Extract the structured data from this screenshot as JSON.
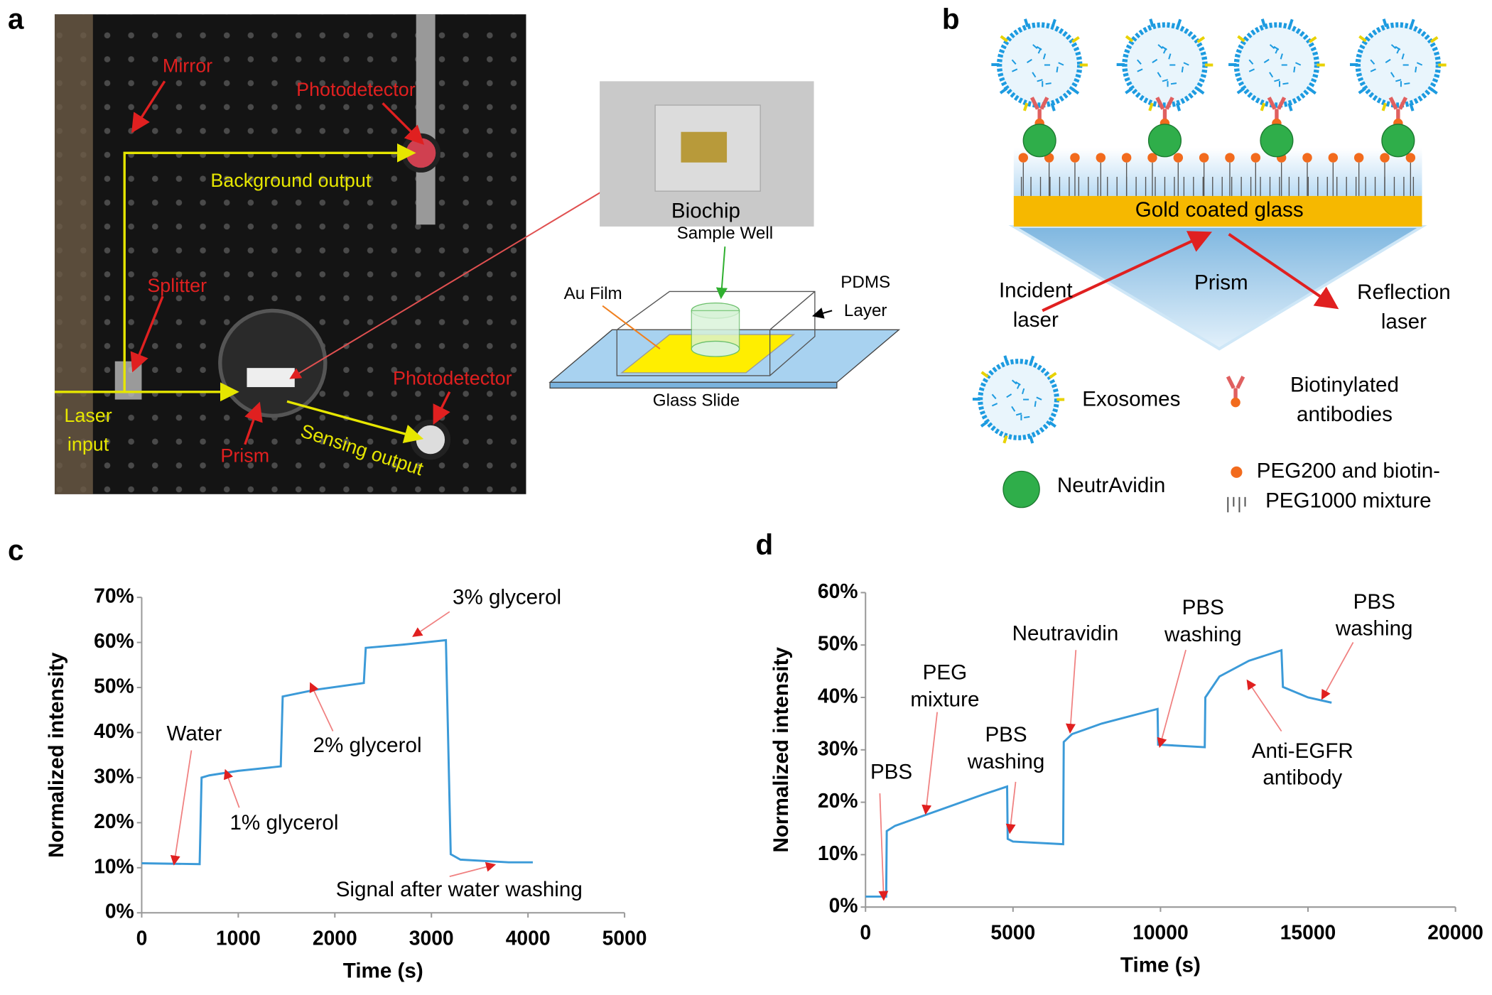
{
  "panel_labels": [
    "a",
    "b",
    "c",
    "d"
  ],
  "setup_photo": {
    "labels": [
      [
        "Mirror"
      ],
      [
        "Photodetector"
      ],
      [
        "Background output"
      ],
      [
        "Splitter"
      ],
      [
        "Laser",
        "input"
      ],
      [
        "Prism"
      ],
      [
        "Sensing output"
      ],
      [
        "Photodetector"
      ]
    ]
  },
  "biochip": {
    "photo_label": "Biochip",
    "labels": [
      [
        "Sample Well"
      ],
      [
        "Au Film"
      ],
      [
        "PDMS",
        "Layer"
      ],
      [
        "Glass Slide"
      ]
    ]
  },
  "schematic": {
    "labels": [
      [
        "Gold coated glass"
      ],
      [
        "Prism"
      ],
      [
        "Incident",
        "laser"
      ],
      [
        "Reflection",
        "laser"
      ]
    ],
    "legend": [
      [
        "Exosomes"
      ],
      [
        "Biotinylated",
        "antibodies"
      ],
      [
        "NeutrAvidin"
      ],
      [
        "PEG200 and biotin-",
        "PEG1000 mixture"
      ]
    ]
  },
  "chart_data": [
    {
      "type": "line",
      "xlabel": "Time (s)",
      "ylabel": "Normalized intensity",
      "color": "#3b9ad8",
      "x": [
        0,
        600,
        620,
        700,
        1000,
        1440,
        1460,
        1800,
        2300,
        2320,
        2700,
        3150,
        3200,
        3300,
        3800,
        4050
      ],
      "values": [
        11,
        10.8,
        30,
        30.5,
        31.5,
        32.5,
        48,
        49.5,
        51,
        58.8,
        59.5,
        60.5,
        13,
        11.8,
        11.2,
        11.2
      ],
      "xlim": [
        0,
        5000
      ],
      "xticks": [
        0,
        1000,
        2000,
        3000,
        4000,
        5000
      ],
      "ylim": [
        0,
        70
      ],
      "yticks": [
        {
          "value": 0,
          "label": "0%"
        },
        {
          "value": 10,
          "label": "10%"
        },
        {
          "value": 20,
          "label": "20%"
        },
        {
          "value": 30,
          "label": "30%"
        },
        {
          "value": 40,
          "label": "40%"
        },
        {
          "value": 50,
          "label": "50%"
        },
        {
          "value": 60,
          "label": "60%"
        },
        {
          "value": 70,
          "label": "70%"
        }
      ],
      "annotations": [
        [
          "Water"
        ],
        [
          "1% glycerol"
        ],
        [
          "2% glycerol"
        ],
        [
          "3% glycerol"
        ],
        [
          "Signal after water washing"
        ]
      ]
    },
    {
      "type": "line",
      "xlabel": "Time (s)",
      "ylabel": "Normalized intensity",
      "color": "#3b9ad8",
      "x": [
        0,
        700,
        720,
        1000,
        2000,
        4000,
        4800,
        4820,
        5000,
        6700,
        6720,
        7000,
        8000,
        9900,
        9920,
        11500,
        11520,
        12000,
        13000,
        14100,
        14150,
        15000,
        15800
      ],
      "values": [
        2,
        2,
        14.5,
        15.5,
        17.5,
        21.5,
        23,
        13,
        12.5,
        12,
        31.5,
        33,
        35,
        37.8,
        31,
        30.5,
        40,
        44,
        47,
        49,
        42,
        40,
        39
      ],
      "xlim": [
        0,
        20000
      ],
      "xticks": [
        0,
        5000,
        10000,
        15000,
        20000
      ],
      "ylim": [
        0,
        60
      ],
      "yticks": [
        {
          "value": 0,
          "label": "0%"
        },
        {
          "value": 10,
          "label": "10%"
        },
        {
          "value": 20,
          "label": "20%"
        },
        {
          "value": 30,
          "label": "30%"
        },
        {
          "value": 40,
          "label": "40%"
        },
        {
          "value": 50,
          "label": "50%"
        },
        {
          "value": 60,
          "label": "60%"
        }
      ],
      "annotations": [
        [
          "PBS"
        ],
        [
          "PEG",
          "mixture"
        ],
        [
          "PBS",
          "washing"
        ],
        [
          "Neutravidin"
        ],
        [
          "PBS",
          "washing"
        ],
        [
          "PBS",
          "washing"
        ],
        [
          "Anti-EGFR",
          "antibody"
        ]
      ]
    }
  ]
}
